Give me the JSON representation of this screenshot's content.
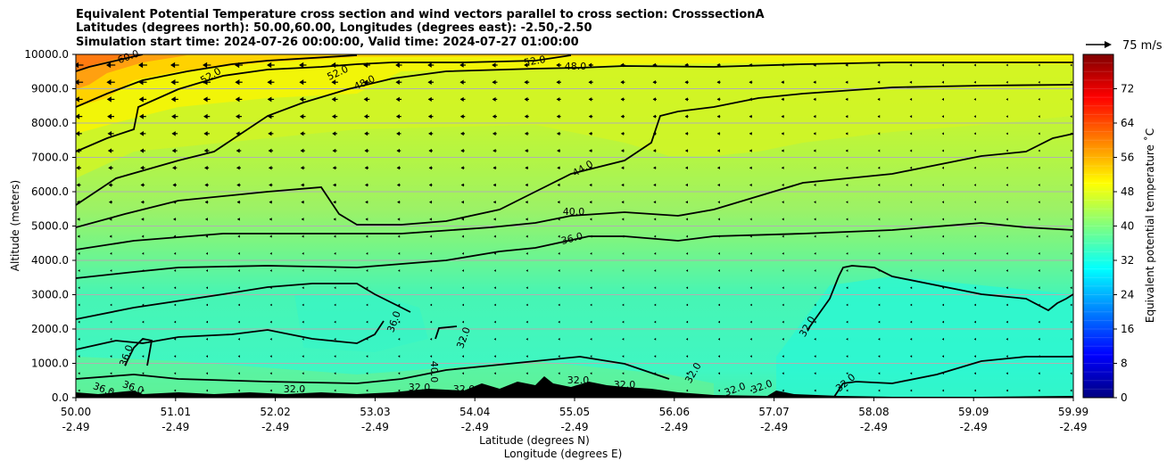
{
  "chart_data": {
    "type": "contourf",
    "title_lines": [
      "Equivalent Potential Temperature cross section and wind vectors parallel to cross section: CrosssectionA",
      "Latitudes (degrees north): 50.00,60.00, Longitudes (degrees east): -2.50,-2.50",
      "Simulation start time: 2024-07-26 00:00:00, Valid time: 2024-07-27 01:00:00"
    ],
    "ylabel": "Altitude (meters)",
    "xlabel_line1": "Latitude (degrees N)",
    "xlabel_line2": "Longitude (degrees E)",
    "ylim": [
      0,
      10000
    ],
    "yticks": [
      "0.0",
      "1000.0",
      "2000.0",
      "3000.0",
      "4000.0",
      "5000.0",
      "6000.0",
      "7000.0",
      "8000.0",
      "9000.0",
      "10000.0"
    ],
    "xticks_lat": [
      "50.00",
      "51.01",
      "52.02",
      "53.03",
      "54.04",
      "55.05",
      "56.06",
      "57.07",
      "58.08",
      "59.09",
      "59.99"
    ],
    "xticks_lon": [
      "-2.49",
      "-2.49",
      "-2.49",
      "-2.49",
      "-2.49",
      "-2.49",
      "-2.49",
      "-2.49",
      "-2.49",
      "-2.49",
      "-2.49"
    ],
    "grid": true,
    "colorbar": {
      "label": "Equivalent potential temperature ˚C",
      "range": [
        0,
        80
      ],
      "ticks": [
        "0",
        "8",
        "16",
        "24",
        "32",
        "40",
        "48",
        "56",
        "64",
        "72"
      ]
    },
    "quiver_key": "75 m/s",
    "contour_labels": [
      "60.0",
      "52.0",
      "52.0",
      "52.0",
      "48.0",
      "48.0",
      "44.0",
      "40.0",
      "36.0",
      "36.0",
      "36.0",
      "36.0",
      "36.0",
      "40.0",
      "32.0",
      "32.0",
      "32.0",
      "32.0",
      "32.0",
      "32.0",
      "32.0",
      "32.0",
      "32.0",
      "32.0",
      "32.0"
    ],
    "colors": {
      "colormap": [
        "#000080",
        "#0000ff",
        "#00ffff",
        "#ffff00",
        "#ff0000",
        "#800000"
      ],
      "contour_line": "#000000",
      "terrain": "#000000",
      "grid": "#b0b0b0"
    }
  }
}
